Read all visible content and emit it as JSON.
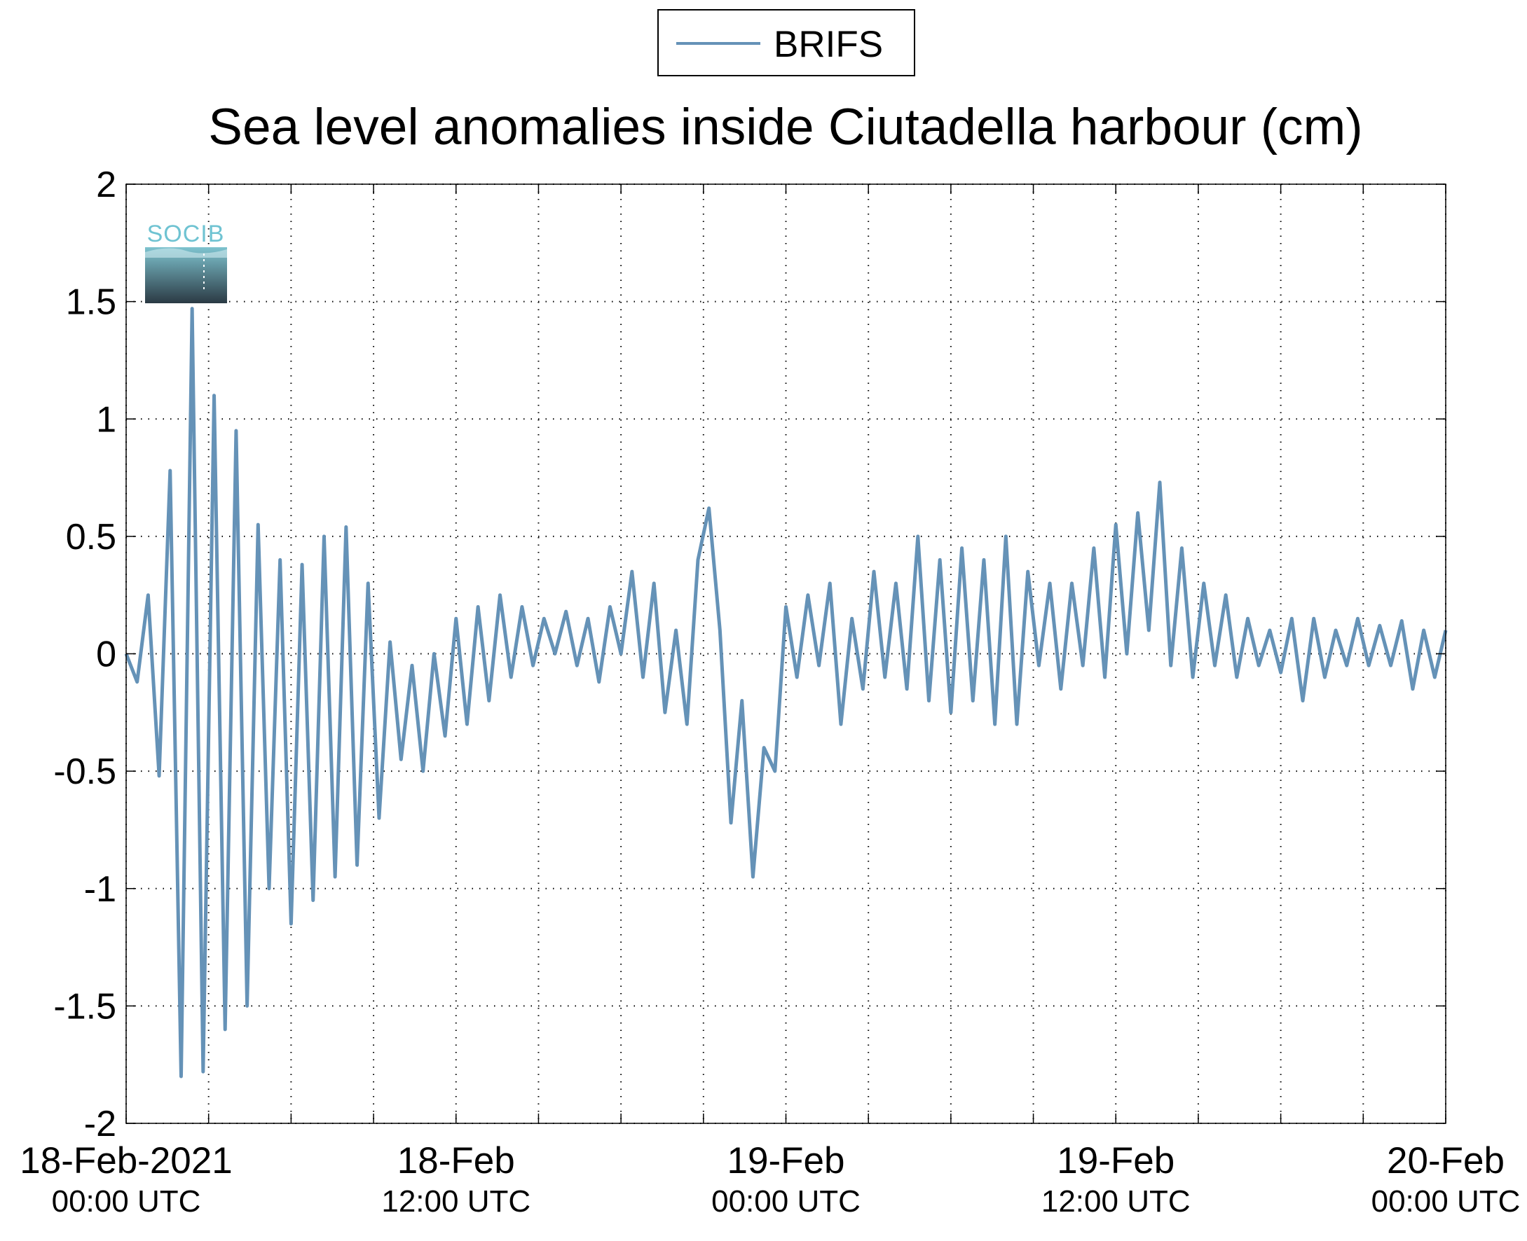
{
  "chart_data": {
    "type": "line",
    "title": "Sea level anomalies inside Ciutadella harbour (cm)",
    "logo": "SOCIB",
    "legend": "top",
    "grid": true,
    "xlim": [
      0,
      48
    ],
    "ylim": [
      -2,
      2
    ],
    "yticks": [
      -2,
      -1.5,
      -1,
      -0.5,
      0,
      0.5,
      1,
      1.5,
      2
    ],
    "xticks": [
      {
        "value": 0,
        "label": [
          "18-Feb-2021",
          "00:00 UTC"
        ]
      },
      {
        "value": 3,
        "label": null
      },
      {
        "value": 6,
        "label": null
      },
      {
        "value": 9,
        "label": null
      },
      {
        "value": 12,
        "label": [
          "18-Feb",
          "12:00 UTC"
        ]
      },
      {
        "value": 15,
        "label": null
      },
      {
        "value": 18,
        "label": null
      },
      {
        "value": 21,
        "label": null
      },
      {
        "value": 24,
        "label": [
          "19-Feb",
          "00:00 UTC"
        ]
      },
      {
        "value": 27,
        "label": null
      },
      {
        "value": 30,
        "label": null
      },
      {
        "value": 33,
        "label": null
      },
      {
        "value": 36,
        "label": [
          "19-Feb",
          "12:00 UTC"
        ]
      },
      {
        "value": 39,
        "label": null
      },
      {
        "value": 42,
        "label": null
      },
      {
        "value": 45,
        "label": null
      },
      {
        "value": 48,
        "label": [
          "20-Feb",
          "00:00 UTC"
        ]
      }
    ],
    "x": [
      0,
      0.4,
      0.8,
      1.2,
      1.6,
      2,
      2.4,
      2.8,
      3.2,
      3.6,
      4,
      4.4,
      4.8,
      5.2,
      5.6,
      6,
      6.4,
      6.8,
      7.2,
      7.6,
      8,
      8.4,
      8.8,
      9.2,
      9.6,
      10,
      10.4,
      10.8,
      11.2,
      11.6,
      12,
      12.4,
      12.8,
      13.2,
      13.6,
      14,
      14.4,
      14.8,
      15.2,
      15.6,
      16,
      16.4,
      16.8,
      17.2,
      17.6,
      18,
      18.4,
      18.8,
      19.2,
      19.6,
      20,
      20.4,
      20.8,
      21.2,
      21.6,
      22,
      22.4,
      22.8,
      23.2,
      23.6,
      24,
      24.4,
      24.8,
      25.2,
      25.6,
      26,
      26.4,
      26.8,
      27.2,
      27.6,
      28,
      28.4,
      28.8,
      29.2,
      29.6,
      30,
      30.4,
      30.8,
      31.2,
      31.6,
      32,
      32.4,
      32.8,
      33.2,
      33.6,
      34,
      34.4,
      34.8,
      35.2,
      35.6,
      36,
      36.4,
      36.8,
      37.2,
      37.6,
      38,
      38.4,
      38.8,
      39.2,
      39.6,
      40,
      40.4,
      40.8,
      41.2,
      41.6,
      42,
      42.4,
      42.8,
      43.2,
      43.6,
      44,
      44.4,
      44.8,
      45.2,
      45.6,
      46,
      46.4,
      46.8,
      47.2,
      47.6,
      48
    ],
    "series": [
      {
        "name": "BRIFS",
        "color": "#6592b7",
        "values": [
          0,
          -0.12,
          0.25,
          -0.52,
          0.78,
          -1.8,
          1.47,
          -1.78,
          1.1,
          -1.6,
          0.95,
          -1.5,
          0.55,
          -1.0,
          0.4,
          -1.15,
          0.38,
          -1.05,
          0.5,
          -0.95,
          0.54,
          -0.9,
          0.3,
          -0.7,
          0.05,
          -0.45,
          -0.05,
          -0.5,
          0,
          -0.35,
          0.15,
          -0.3,
          0.2,
          -0.2,
          0.25,
          -0.1,
          0.2,
          -0.05,
          0.15,
          0,
          0.18,
          -0.05,
          0.15,
          -0.12,
          0.2,
          0,
          0.35,
          -0.1,
          0.3,
          -0.25,
          0.1,
          -0.3,
          0.4,
          0.62,
          0.1,
          -0.72,
          -0.2,
          -0.95,
          -0.4,
          -0.5,
          0.2,
          -0.1,
          0.25,
          -0.05,
          0.3,
          -0.3,
          0.15,
          -0.15,
          0.35,
          -0.1,
          0.3,
          -0.15,
          0.5,
          -0.2,
          0.4,
          -0.25,
          0.45,
          -0.2,
          0.4,
          -0.3,
          0.5,
          -0.3,
          0.35,
          -0.05,
          0.3,
          -0.15,
          0.3,
          -0.05,
          0.45,
          -0.1,
          0.55,
          0,
          0.6,
          0.1,
          0.73,
          -0.05,
          0.45,
          -0.1,
          0.3,
          -0.05,
          0.25,
          -0.1,
          0.15,
          -0.05,
          0.1,
          -0.08,
          0.15,
          -0.2,
          0.15,
          -0.1,
          0.1,
          -0.05,
          0.15,
          -0.05,
          0.12,
          -0.05,
          0.14,
          -0.15,
          0.1,
          -0.1,
          0.1
        ]
      }
    ]
  }
}
